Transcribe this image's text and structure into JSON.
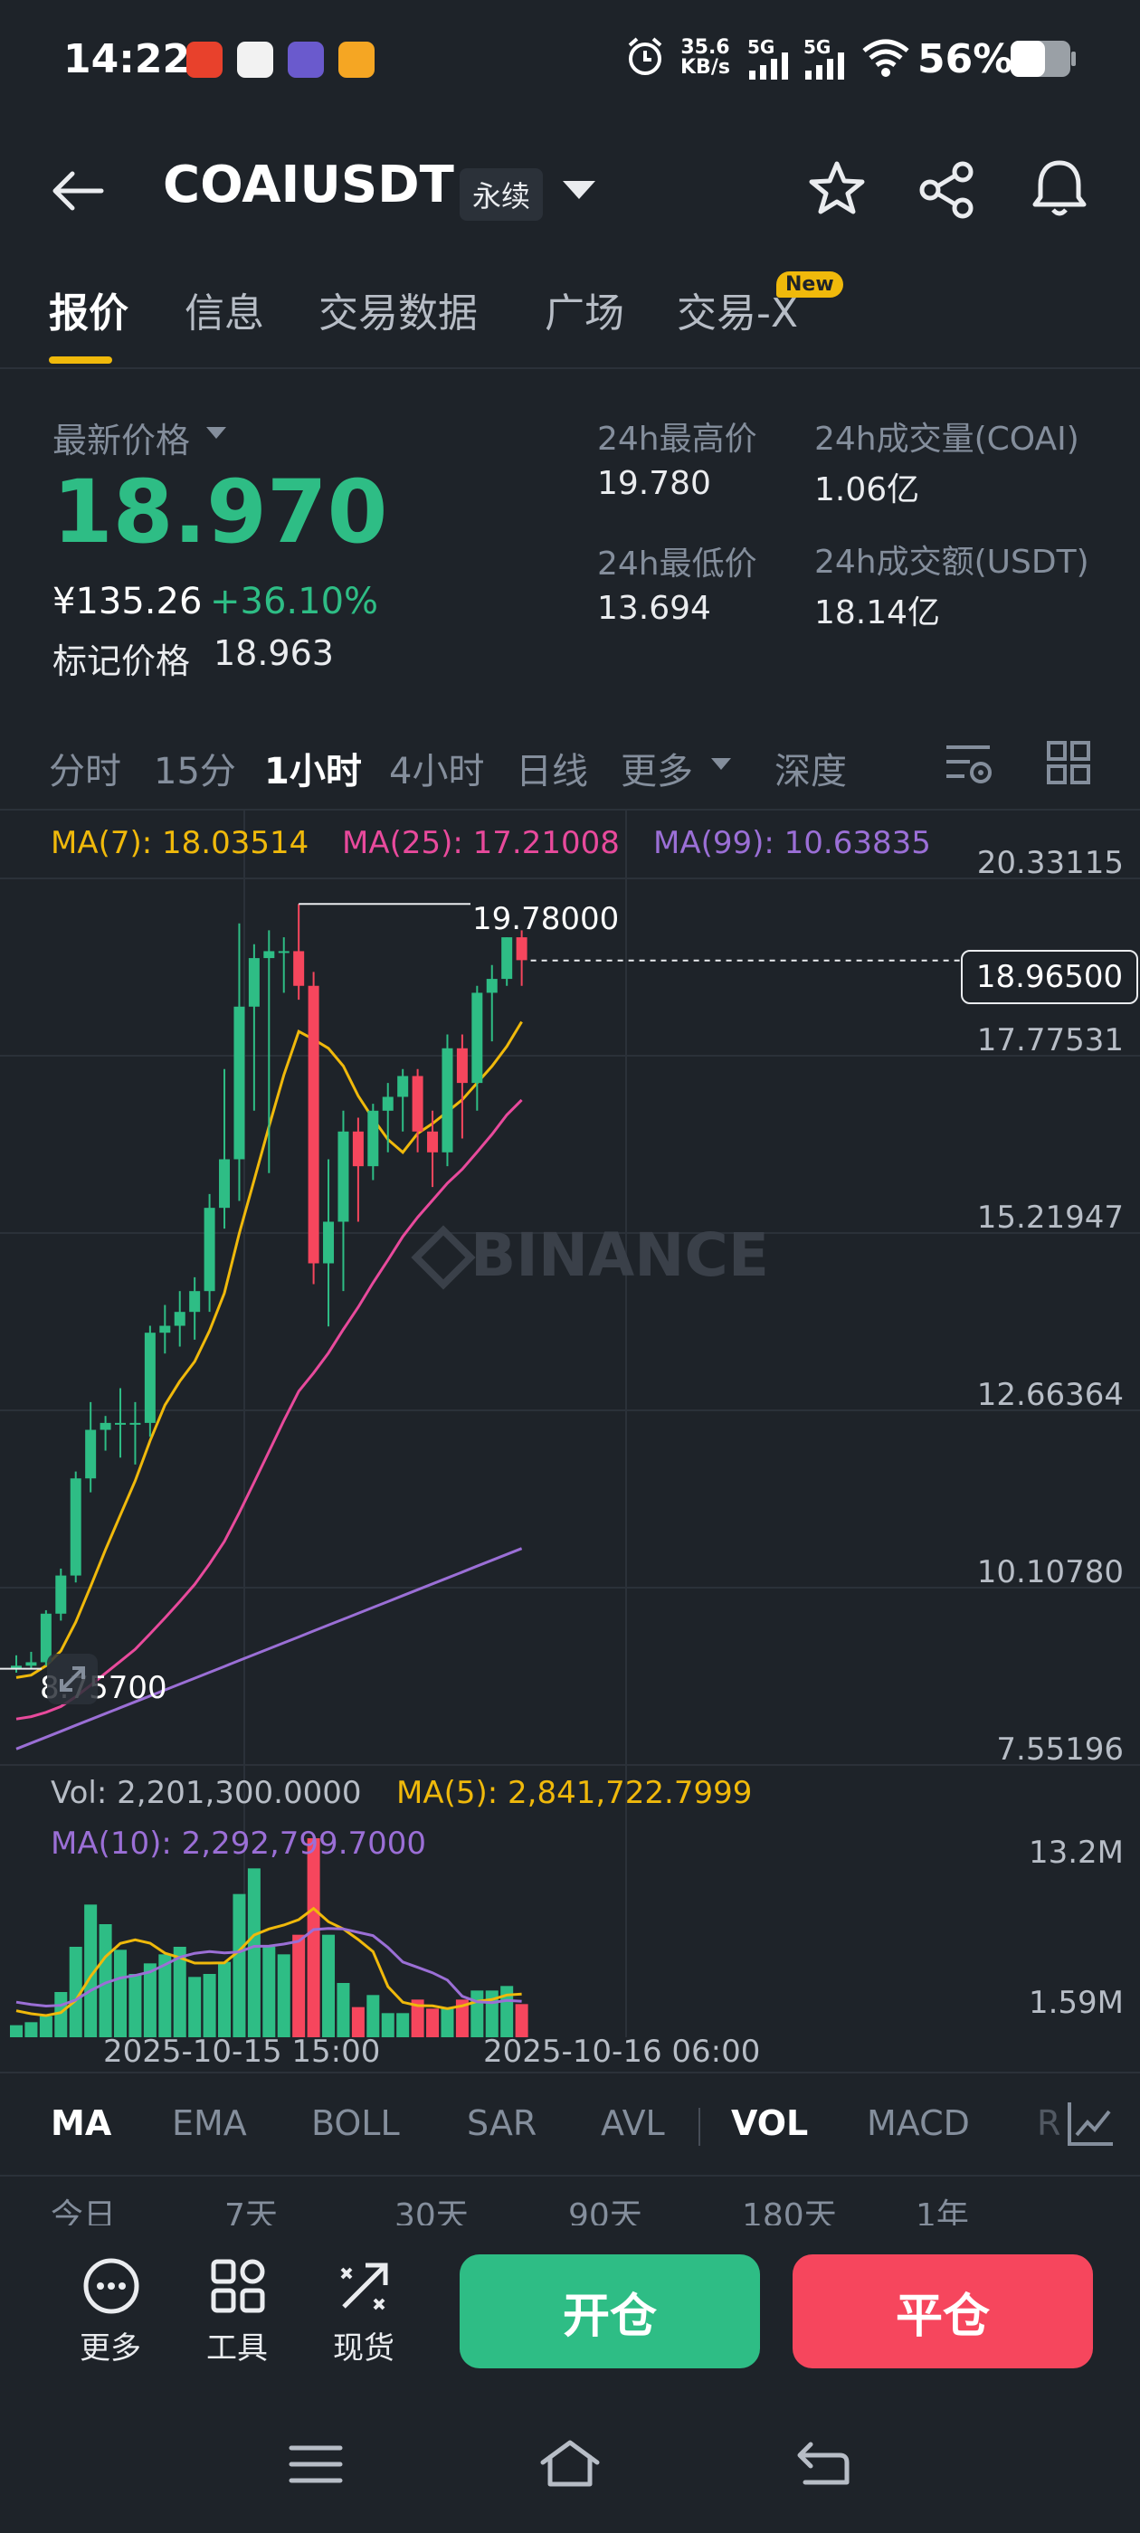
{
  "status_bar": {
    "time": "14:22",
    "network_speed_value": "35.6",
    "network_speed_unit": "KB/s",
    "signal_1": "5G",
    "signal_2": "5G",
    "battery": "56%",
    "icons": [
      "alarm-icon",
      "wifi-icon",
      "battery-icon",
      "signal-icon"
    ]
  },
  "header": {
    "symbol": "COAIUSDT",
    "contract_badge": "永续"
  },
  "tabs": [
    {
      "label": "报价",
      "active": true
    },
    {
      "label": "信息"
    },
    {
      "label": "交易数据"
    },
    {
      "label": "广场"
    },
    {
      "label": "交易-X",
      "badge": "New"
    }
  ],
  "price": {
    "last_label": "最新价格",
    "last": "18.970",
    "cny": "¥135.26",
    "change": "+36.10%",
    "mark_label": "标记价格",
    "mark": "18.963"
  },
  "stats": {
    "high_label": "24h最高价",
    "high": "19.780",
    "low_label": "24h最低价",
    "low": "13.694",
    "vol_label": "24h成交量(COAI)",
    "vol": "1.06亿",
    "turnover_label": "24h成交额(USDT)",
    "turnover": "18.14亿"
  },
  "intervals": [
    "分时",
    "15分",
    "1小时",
    "4小时",
    "日线",
    "更多",
    "深度"
  ],
  "active_interval": "1小时",
  "chart": {
    "ma7": "MA(7): 18.03514",
    "ma25": "MA(25): 17.21008",
    "ma99": "MA(99): 10.63835",
    "y_labels": [
      "20.33115",
      "17.77531",
      "15.21947",
      "12.66364",
      "10.10780",
      "7.55196"
    ],
    "current_price_tag": "18.96500",
    "high_marker": "19.78000",
    "low_marker": "8.75700",
    "watermark": "BINANCE",
    "colors": {
      "up": "#2ebd85",
      "down": "#f6465d",
      "ma7": "#f0b90b",
      "ma25": "#e84a9c",
      "ma99": "#9b6fd6"
    }
  },
  "volume": {
    "vol": "Vol: 2,201,300.0000",
    "ma5": "MA(5): 2,841,722.7999",
    "ma10": "MA(10): 2,292,799.7000",
    "y_top": "13.2M",
    "y_bottom": "1.59M",
    "x_labels": [
      "2025-10-15 15:00",
      "2025-10-16 06:00"
    ]
  },
  "indicators": [
    "MA",
    "EMA",
    "BOLL",
    "SAR",
    "AVL",
    "VOL",
    "MACD",
    "R"
  ],
  "active_indicators": [
    "MA",
    "VOL"
  ],
  "ranges": [
    "今日",
    "7天",
    "30天",
    "90天",
    "180天",
    "1年"
  ],
  "actions": {
    "more": "更多",
    "tools": "工具",
    "spot": "现货",
    "open": "开仓",
    "close": "平仓"
  },
  "chart_data": {
    "type": "candlestick",
    "interval": "1小时",
    "candles": [
      {
        "o": 8.76,
        "h": 8.95,
        "l": 8.7,
        "c": 8.8
      },
      {
        "o": 8.8,
        "h": 9.0,
        "l": 8.75,
        "c": 8.85
      },
      {
        "o": 8.85,
        "h": 9.6,
        "l": 8.8,
        "c": 9.55
      },
      {
        "o": 9.55,
        "h": 10.2,
        "l": 9.45,
        "c": 10.1
      },
      {
        "o": 10.1,
        "h": 11.6,
        "l": 10.0,
        "c": 11.5
      },
      {
        "o": 11.5,
        "h": 12.6,
        "l": 11.3,
        "c": 12.2
      },
      {
        "o": 12.2,
        "h": 12.4,
        "l": 11.9,
        "c": 12.3
      },
      {
        "o": 12.3,
        "h": 12.8,
        "l": 11.8,
        "c": 12.3
      },
      {
        "o": 12.3,
        "h": 12.6,
        "l": 11.7,
        "c": 12.3
      },
      {
        "o": 12.3,
        "h": 13.7,
        "l": 12.1,
        "c": 13.6
      },
      {
        "o": 13.6,
        "h": 14.0,
        "l": 13.3,
        "c": 13.7
      },
      {
        "o": 13.7,
        "h": 14.2,
        "l": 13.4,
        "c": 13.9
      },
      {
        "o": 13.9,
        "h": 14.4,
        "l": 13.5,
        "c": 14.2
      },
      {
        "o": 14.2,
        "h": 15.6,
        "l": 13.9,
        "c": 15.4
      },
      {
        "o": 15.4,
        "h": 17.4,
        "l": 15.1,
        "c": 16.1
      },
      {
        "o": 16.1,
        "h": 19.5,
        "l": 15.5,
        "c": 18.3
      },
      {
        "o": 18.3,
        "h": 19.2,
        "l": 16.8,
        "c": 19.0
      },
      {
        "o": 19.0,
        "h": 19.4,
        "l": 15.9,
        "c": 19.1
      },
      {
        "o": 19.1,
        "h": 19.3,
        "l": 18.5,
        "c": 19.1
      },
      {
        "o": 19.1,
        "h": 19.78,
        "l": 18.4,
        "c": 18.6
      },
      {
        "o": 18.6,
        "h": 18.8,
        "l": 14.3,
        "c": 14.6
      },
      {
        "o": 14.6,
        "h": 16.1,
        "l": 13.69,
        "c": 15.2
      },
      {
        "o": 15.2,
        "h": 16.8,
        "l": 14.2,
        "c": 16.5
      },
      {
        "o": 16.5,
        "h": 16.7,
        "l": 15.2,
        "c": 16.0
      },
      {
        "o": 16.0,
        "h": 16.9,
        "l": 15.8,
        "c": 16.8
      },
      {
        "o": 16.8,
        "h": 17.2,
        "l": 16.2,
        "c": 17.0
      },
      {
        "o": 17.0,
        "h": 17.4,
        "l": 16.5,
        "c": 17.3
      },
      {
        "o": 17.3,
        "h": 17.4,
        "l": 16.2,
        "c": 16.5
      },
      {
        "o": 16.5,
        "h": 16.8,
        "l": 15.7,
        "c": 16.2
      },
      {
        "o": 16.2,
        "h": 17.9,
        "l": 16.0,
        "c": 17.7
      },
      {
        "o": 17.7,
        "h": 17.9,
        "l": 16.4,
        "c": 17.2
      },
      {
        "o": 17.2,
        "h": 18.6,
        "l": 16.8,
        "c": 18.5
      },
      {
        "o": 18.5,
        "h": 18.9,
        "l": 17.8,
        "c": 18.7
      },
      {
        "o": 18.7,
        "h": 19.3,
        "l": 18.6,
        "c": 19.3
      },
      {
        "o": 19.3,
        "h": 19.4,
        "l": 18.6,
        "c": 18.97
      }
    ],
    "volumes_m": [
      0.8,
      1.0,
      1.4,
      3.0,
      6.0,
      8.8,
      7.5,
      5.8,
      4.2,
      4.9,
      5.5,
      6.0,
      4.0,
      4.2,
      5.0,
      9.5,
      11.2,
      6.0,
      5.5,
      6.8,
      13.2,
      6.8,
      3.6,
      2.0,
      2.8,
      1.6,
      1.6,
      2.5,
      1.9,
      1.9,
      2.5,
      3.1,
      3.1,
      3.4,
      2.2
    ],
    "ylim": [
      7.55196,
      20.33115
    ],
    "volume_ylim": [
      0,
      13.2
    ]
  }
}
